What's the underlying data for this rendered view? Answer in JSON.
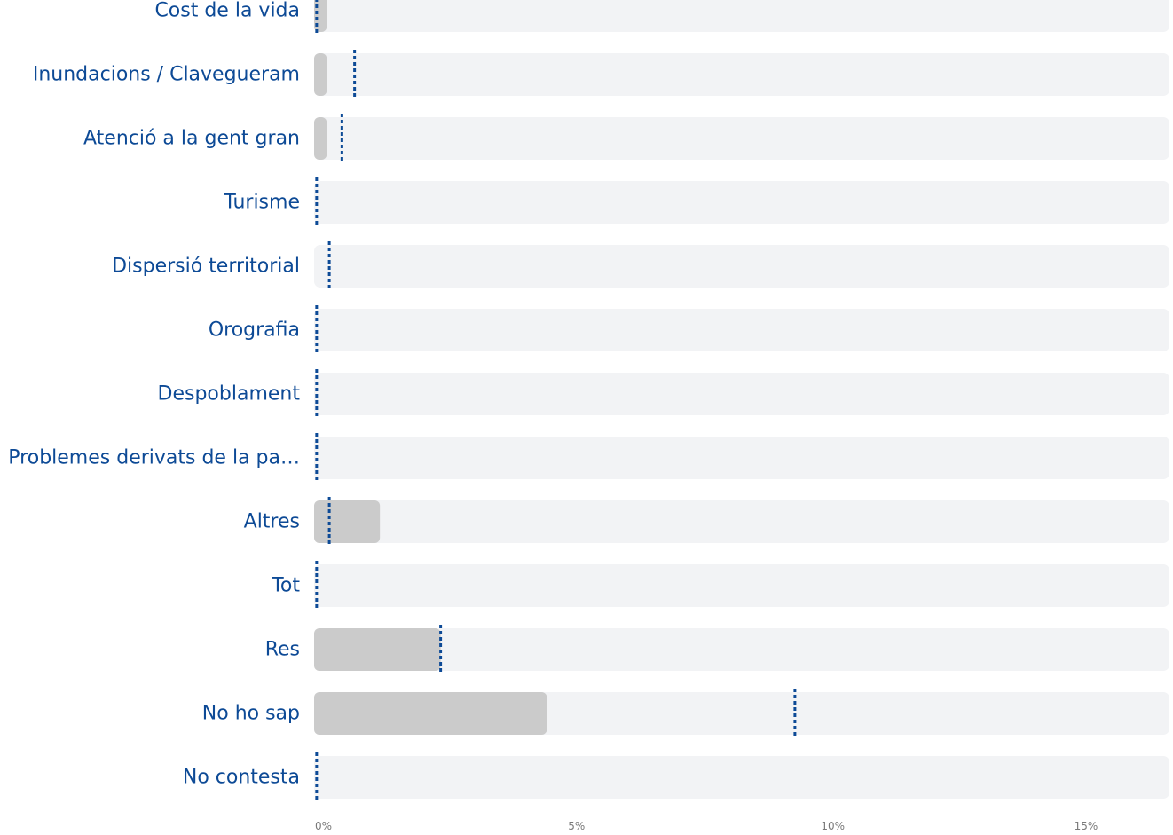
{
  "chart_data": {
    "type": "bar",
    "orientation": "horizontal",
    "categories": [
      "Cost de la vida",
      "Inundacions / Clavegueram",
      "Atenció a la gent gran",
      "Turisme",
      "Dispersió territorial",
      "Orografia",
      "Despoblament",
      "Problemes derivats de la pa…",
      "Altres",
      "Tot",
      "Res",
      "No ho sap",
      "No contesta"
    ],
    "series": [
      {
        "values": [
          0.25,
          0.25,
          0.25,
          0,
          0,
          0,
          0,
          0,
          1.3,
          0,
          2.5,
          4.6,
          0
        ]
      },
      {
        "style": "dotted-marker",
        "values": [
          0.05,
          0.8,
          0.55,
          0.05,
          0.3,
          0.05,
          0.05,
          0.05,
          0.3,
          0.05,
          2.5,
          9.5,
          0.05
        ]
      }
    ],
    "xlim": [
      0,
      16.9
    ],
    "xticks": [
      0,
      5,
      10,
      15
    ],
    "xtick_labels": [
      "0%",
      "5%",
      "10%",
      "15%"
    ],
    "title": "",
    "xlabel": "",
    "ylabel": "",
    "grid": false,
    "colors": {
      "bar": "#cbcbcb",
      "track": "#f2f3f5",
      "marker": "#0d4a96",
      "label": "#0d4a96",
      "tick": "#7a7a7a"
    }
  }
}
